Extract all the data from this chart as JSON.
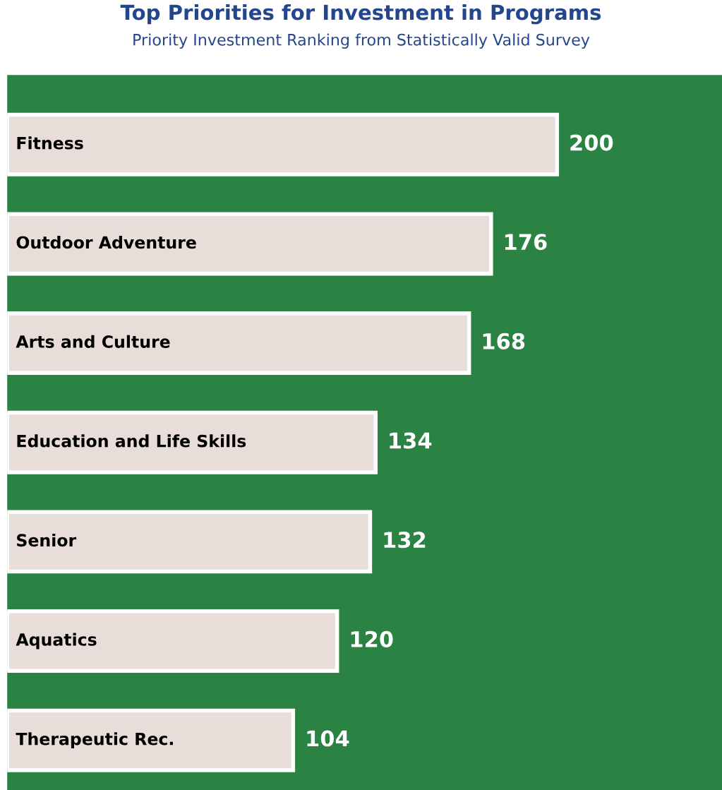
{
  "chart_data": {
    "type": "bar",
    "orientation": "horizontal",
    "title": "Top Priorities for Investment in Programs",
    "subtitle": "Priority Investment Ranking from Statistically Valid Survey",
    "categories": [
      "Fitness",
      "Outdoor Adventure",
      "Arts and Culture",
      "Education and Life Skills",
      "Senior",
      "Aquatics",
      "Therapeutic Rec."
    ],
    "values": [
      200,
      176,
      168,
      134,
      132,
      120,
      104
    ],
    "color": "#e8ddd8",
    "data_labels": true
  }
}
